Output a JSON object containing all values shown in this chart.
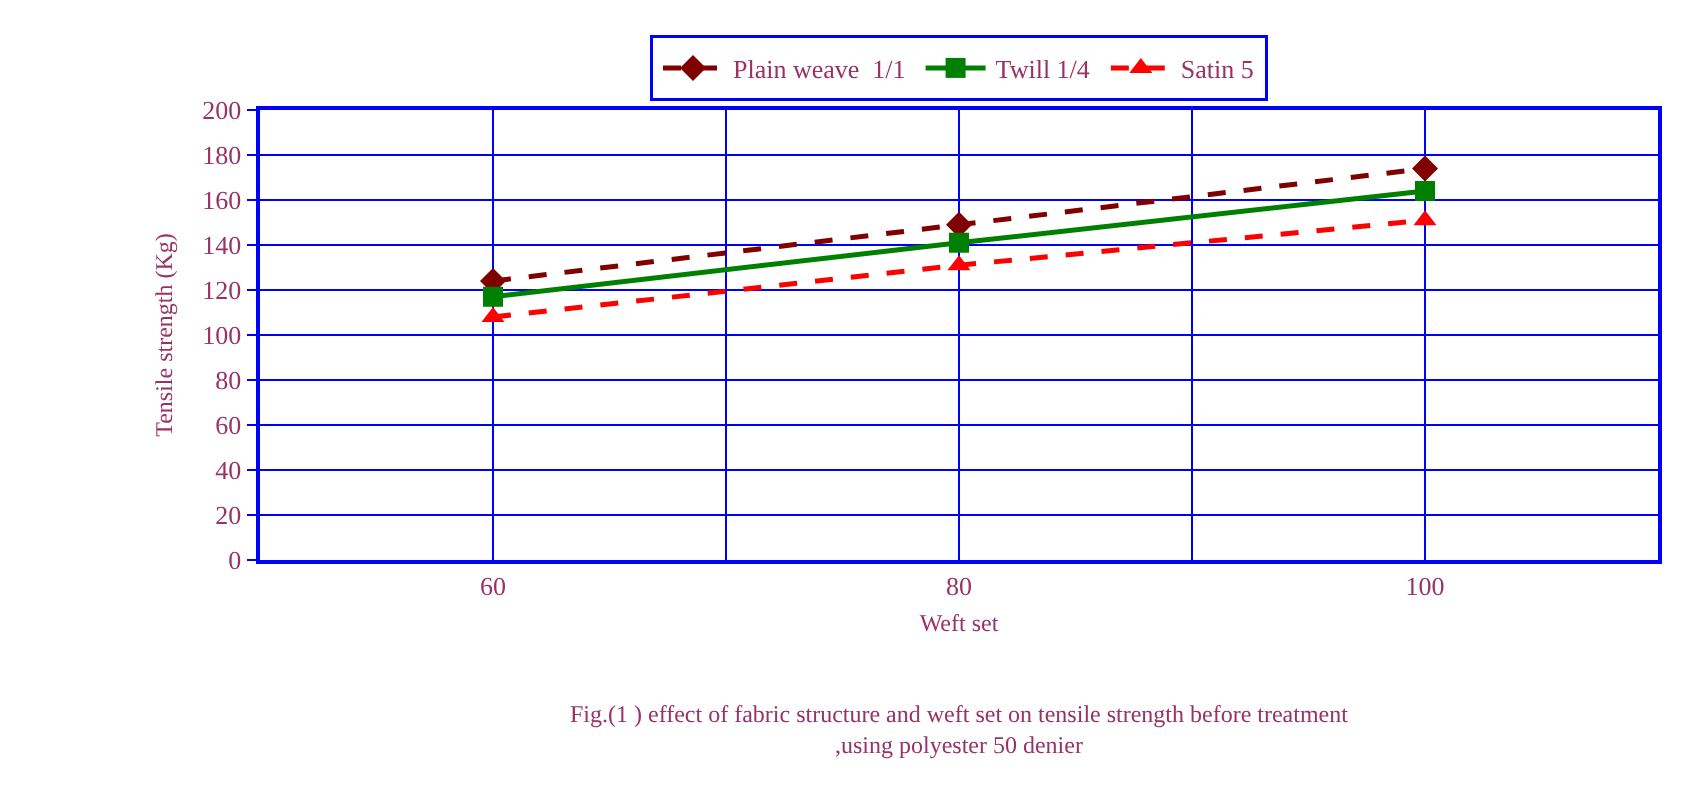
{
  "chart_data": {
    "type": "line",
    "x": [
      60,
      80,
      100
    ],
    "series": [
      {
        "name": "Plain weave  1/1",
        "color": "#800000",
        "values": [
          124,
          149,
          174
        ],
        "marker": "diamond",
        "line_style": "dashed"
      },
      {
        "name": "Twill 1/4",
        "color": "#008000",
        "values": [
          117,
          141,
          164
        ],
        "marker": "square",
        "line_style": "solid"
      },
      {
        "name": "Satin 5",
        "color": "#ff0000",
        "values": [
          108,
          131,
          151
        ],
        "marker": "triangle",
        "line_style": "dashed"
      }
    ],
    "xlabel": "Weft set",
    "ylabel": "Tensile strength (Kg)",
    "xlim": [
      50,
      110
    ],
    "xticks": [
      60,
      {
        "value": 70,
        "label": null
      },
      80,
      {
        "value": 90,
        "label": null
      },
      100
    ],
    "ylim": [
      0,
      200
    ],
    "yticks": [
      0,
      20,
      40,
      60,
      80,
      100,
      120,
      140,
      160,
      180,
      200
    ],
    "grid": true,
    "legend": "top",
    "annotations": [
      "Fig.(1 ) effect of fabric structure and weft set on tensile strength before treatment\n,using polyester 50 denier"
    ]
  }
}
